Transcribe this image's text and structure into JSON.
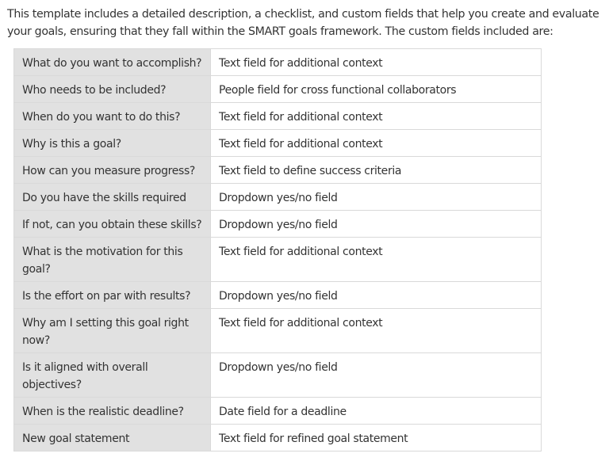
{
  "intro": "This template includes a detailed description, a checklist, and custom fields that help you create and evaluate your goals, ensuring that they fall within the SMART goals framework. The custom fields included are:",
  "rows": [
    {
      "question": "What do you want to accomplish?",
      "field": "Text field for additional context"
    },
    {
      "question": "Who needs to be included?",
      "field": "People field for cross functional collaborators"
    },
    {
      "question": "When do you want to do this?",
      "field": "Text field for additional context"
    },
    {
      "question": "Why is this a goal?",
      "field": "Text field for additional context"
    },
    {
      "question": "How can you measure progress?",
      "field": "Text field to define success criteria"
    },
    {
      "question": "Do you have the skills required",
      "field": "Dropdown yes/no field"
    },
    {
      "question": "If not, can you obtain these skills?",
      "field": "Dropdown yes/no field"
    },
    {
      "question": "What is the motivation for this goal?",
      "field": "Text field for additional context"
    },
    {
      "question": "Is the effort on par with results?",
      "field": "Dropdown yes/no field"
    },
    {
      "question": "Why am I setting this goal right now?",
      "field": "Text field for additional context"
    },
    {
      "question": "Is it aligned with overall objectives?",
      "field": "Dropdown yes/no field"
    },
    {
      "question": "When is the realistic deadline?",
      "field": "Date field for a deadline"
    },
    {
      "question": "New goal statement",
      "field": "Text field for refined goal statement"
    }
  ]
}
